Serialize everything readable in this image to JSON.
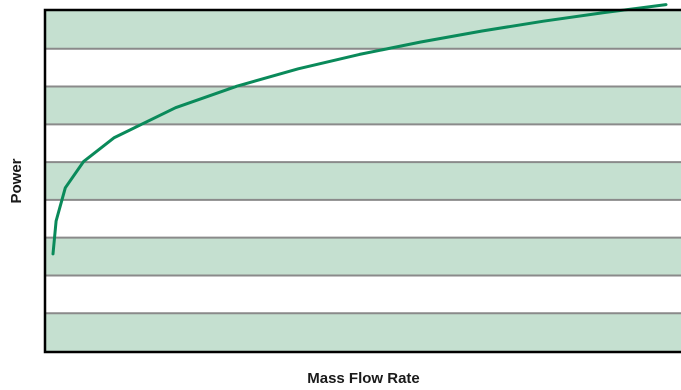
{
  "chart_data": {
    "type": "line",
    "title": "",
    "xlabel": "Mass Flow Rate",
    "ylabel": "Power",
    "x_tick_labels": [],
    "y_tick_labels": [],
    "xlim": [
      0,
      1
    ],
    "ylim": [
      0,
      9
    ],
    "grid": true,
    "band_colors": {
      "shaded": "#c5e0d0",
      "plain": "#ffffff",
      "gridline": "#8a8a8a",
      "frame": "#000000"
    },
    "series": [
      {
        "color": "#0a8a5a",
        "x": [
          0.0,
          0.005,
          0.02,
          0.05,
          0.1,
          0.2,
          0.3,
          0.4,
          0.5,
          0.6,
          0.7,
          0.8,
          0.9,
          1.0
        ],
        "y": [
          2.57,
          3.44,
          4.32,
          5.02,
          5.65,
          6.44,
          7.01,
          7.47,
          7.85,
          8.18,
          8.47,
          8.73,
          8.96,
          9.17
        ]
      }
    ]
  }
}
